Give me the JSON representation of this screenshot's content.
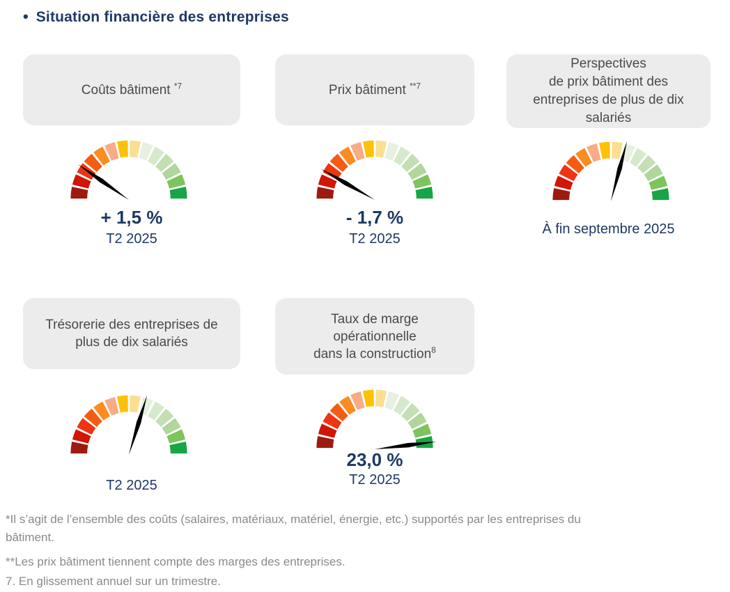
{
  "page_title": {
    "bullet": "•",
    "text": "Situation financière des entreprises"
  },
  "styles": {
    "accent": "#1f3864",
    "header_bg": "#ececec",
    "header_text": "#4a4a4a",
    "footnote_color": "#8a8a8a",
    "needle_color": "#000000"
  },
  "gauge_scale": {
    "start_angle_deg": 180,
    "end_angle_deg": 0,
    "segment_gap_deg": 2.2,
    "segment_colors": [
      "#9e1a0f",
      "#d11507",
      "#ee3410",
      "#f55c13",
      "#fb8c21",
      "#f8ab85",
      "#fdc108",
      "#fbdf90",
      "#e7f0e1",
      "#d7e9cc",
      "#c4dfb3",
      "#b0d69b",
      "#7dc45c",
      "#17a546"
    ]
  },
  "chart_data": [
    {
      "type": "gauge",
      "id": "couts-batiment",
      "title_lines": [
        "Coûts bâtiment"
      ],
      "title_sup": "*7",
      "sup_space": true,
      "needle_angle_deg": 145,
      "value": "+ 1,5 %",
      "period": "T2 2025"
    },
    {
      "type": "gauge",
      "id": "prix-batiment",
      "title_lines": [
        "Prix bâtiment"
      ],
      "title_sup": "**7",
      "sup_space": true,
      "needle_angle_deg": 150,
      "value": "- 1,7 %",
      "period": "T2 2025"
    },
    {
      "type": "gauge",
      "id": "perspectives-prix-batiment",
      "title_lines": [
        "Perspectives",
        "de prix bâtiment des",
        "entreprises de plus de dix",
        "salariés"
      ],
      "title_sup": "",
      "sup_space": false,
      "needle_angle_deg": 75,
      "value": "",
      "period": "À fin septembre 2025"
    },
    {
      "type": "gauge",
      "id": "tresorerie",
      "title_lines": [
        "Trésorerie des entreprises de",
        "plus de dix salariés"
      ],
      "title_sup": "",
      "sup_space": false,
      "needle_angle_deg": 73,
      "value": "",
      "period": "T2 2025"
    },
    {
      "type": "gauge",
      "id": "taux-marge-operationnelle",
      "title_lines": [
        "Taux de marge",
        "opérationnelle",
        "dans la construction"
      ],
      "title_sup": "8",
      "sup_space": false,
      "needle_angle_deg": 7,
      "value": "23,0 %",
      "period": "T2 2025"
    }
  ],
  "footnotes": [
    "*Il s’agit de l’ensemble des coûts (salaires, matériaux, matériel, énergie, etc.) supportés par les entreprises du\nbâtiment.",
    "**Les prix bâtiment tiennent compte des marges des entreprises.",
    "7. En glissement annuel sur un trimestre."
  ]
}
